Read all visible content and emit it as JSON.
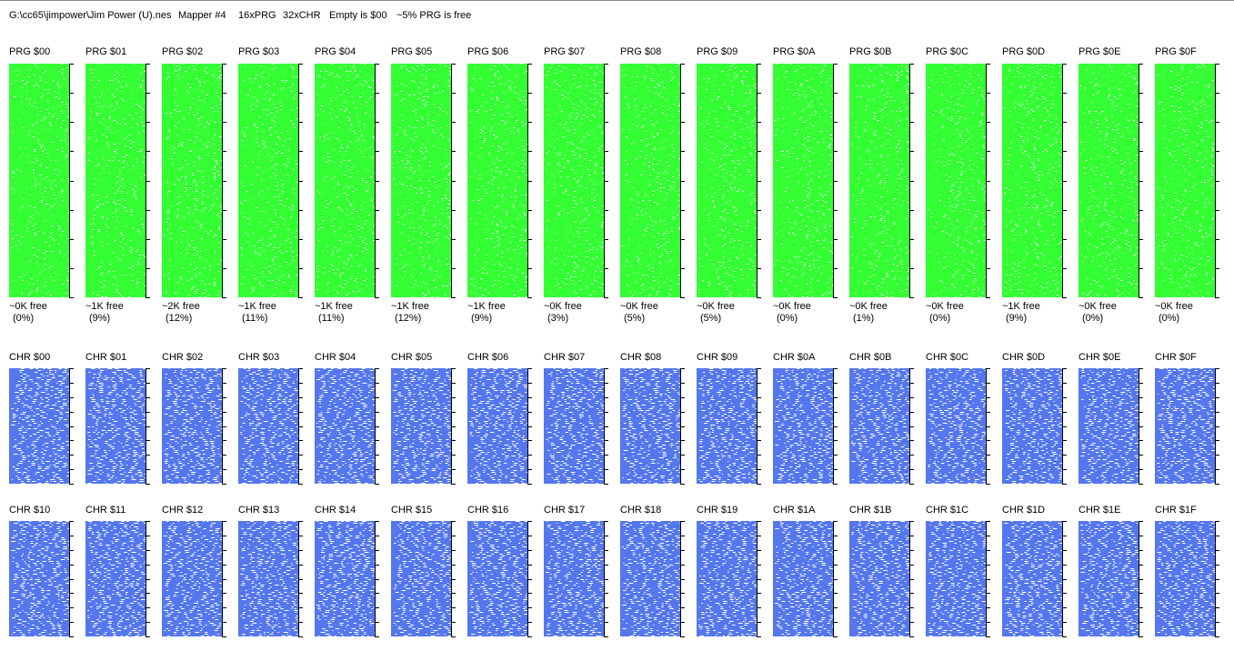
{
  "header": {
    "file": "G:\\cc65\\jimpower\\Jim Power (U).nes",
    "mapper": "Mapper #4",
    "prg_count": "16xPRG",
    "chr_count": "32xCHR",
    "empty": "Empty is $00",
    "free": "~5% PRG is free"
  },
  "prg_banks": [
    {
      "label": "PRG $00",
      "free": "~0K free",
      "percent": "(0%)"
    },
    {
      "label": "PRG $01",
      "free": "~1K free",
      "percent": "(9%)"
    },
    {
      "label": "PRG $02",
      "free": "~2K free",
      "percent": "(12%)"
    },
    {
      "label": "PRG $03",
      "free": "~1K free",
      "percent": "(11%)"
    },
    {
      "label": "PRG $04",
      "free": "~1K free",
      "percent": "(11%)"
    },
    {
      "label": "PRG $05",
      "free": "~1K free",
      "percent": "(12%)"
    },
    {
      "label": "PRG $06",
      "free": "~1K free",
      "percent": "(9%)"
    },
    {
      "label": "PRG $07",
      "free": "~0K free",
      "percent": "(3%)"
    },
    {
      "label": "PRG $08",
      "free": "~0K free",
      "percent": "(5%)"
    },
    {
      "label": "PRG $09",
      "free": "~0K free",
      "percent": "(5%)"
    },
    {
      "label": "PRG $0A",
      "free": "~0K free",
      "percent": "(0%)"
    },
    {
      "label": "PRG $0B",
      "free": "~0K free",
      "percent": "(1%)"
    },
    {
      "label": "PRG $0C",
      "free": "~0K free",
      "percent": "(0%)"
    },
    {
      "label": "PRG $0D",
      "free": "~1K free",
      "percent": "(9%)"
    },
    {
      "label": "PRG $0E",
      "free": "~0K free",
      "percent": "(0%)"
    },
    {
      "label": "PRG $0F",
      "free": "~0K free",
      "percent": "(0%)"
    }
  ],
  "chr_banks": [
    "CHR $00",
    "CHR $01",
    "CHR $02",
    "CHR $03",
    "CHR $04",
    "CHR $05",
    "CHR $06",
    "CHR $07",
    "CHR $08",
    "CHR $09",
    "CHR $0A",
    "CHR $0B",
    "CHR $0C",
    "CHR $0D",
    "CHR $0E",
    "CHR $0F",
    "CHR $10",
    "CHR $11",
    "CHR $12",
    "CHR $13",
    "CHR $14",
    "CHR $15",
    "CHR $16",
    "CHR $17",
    "CHR $18",
    "CHR $19",
    "CHR $1A",
    "CHR $1B",
    "CHR $1C",
    "CHR $1D",
    "CHR $1E",
    "CHR $1F"
  ]
}
